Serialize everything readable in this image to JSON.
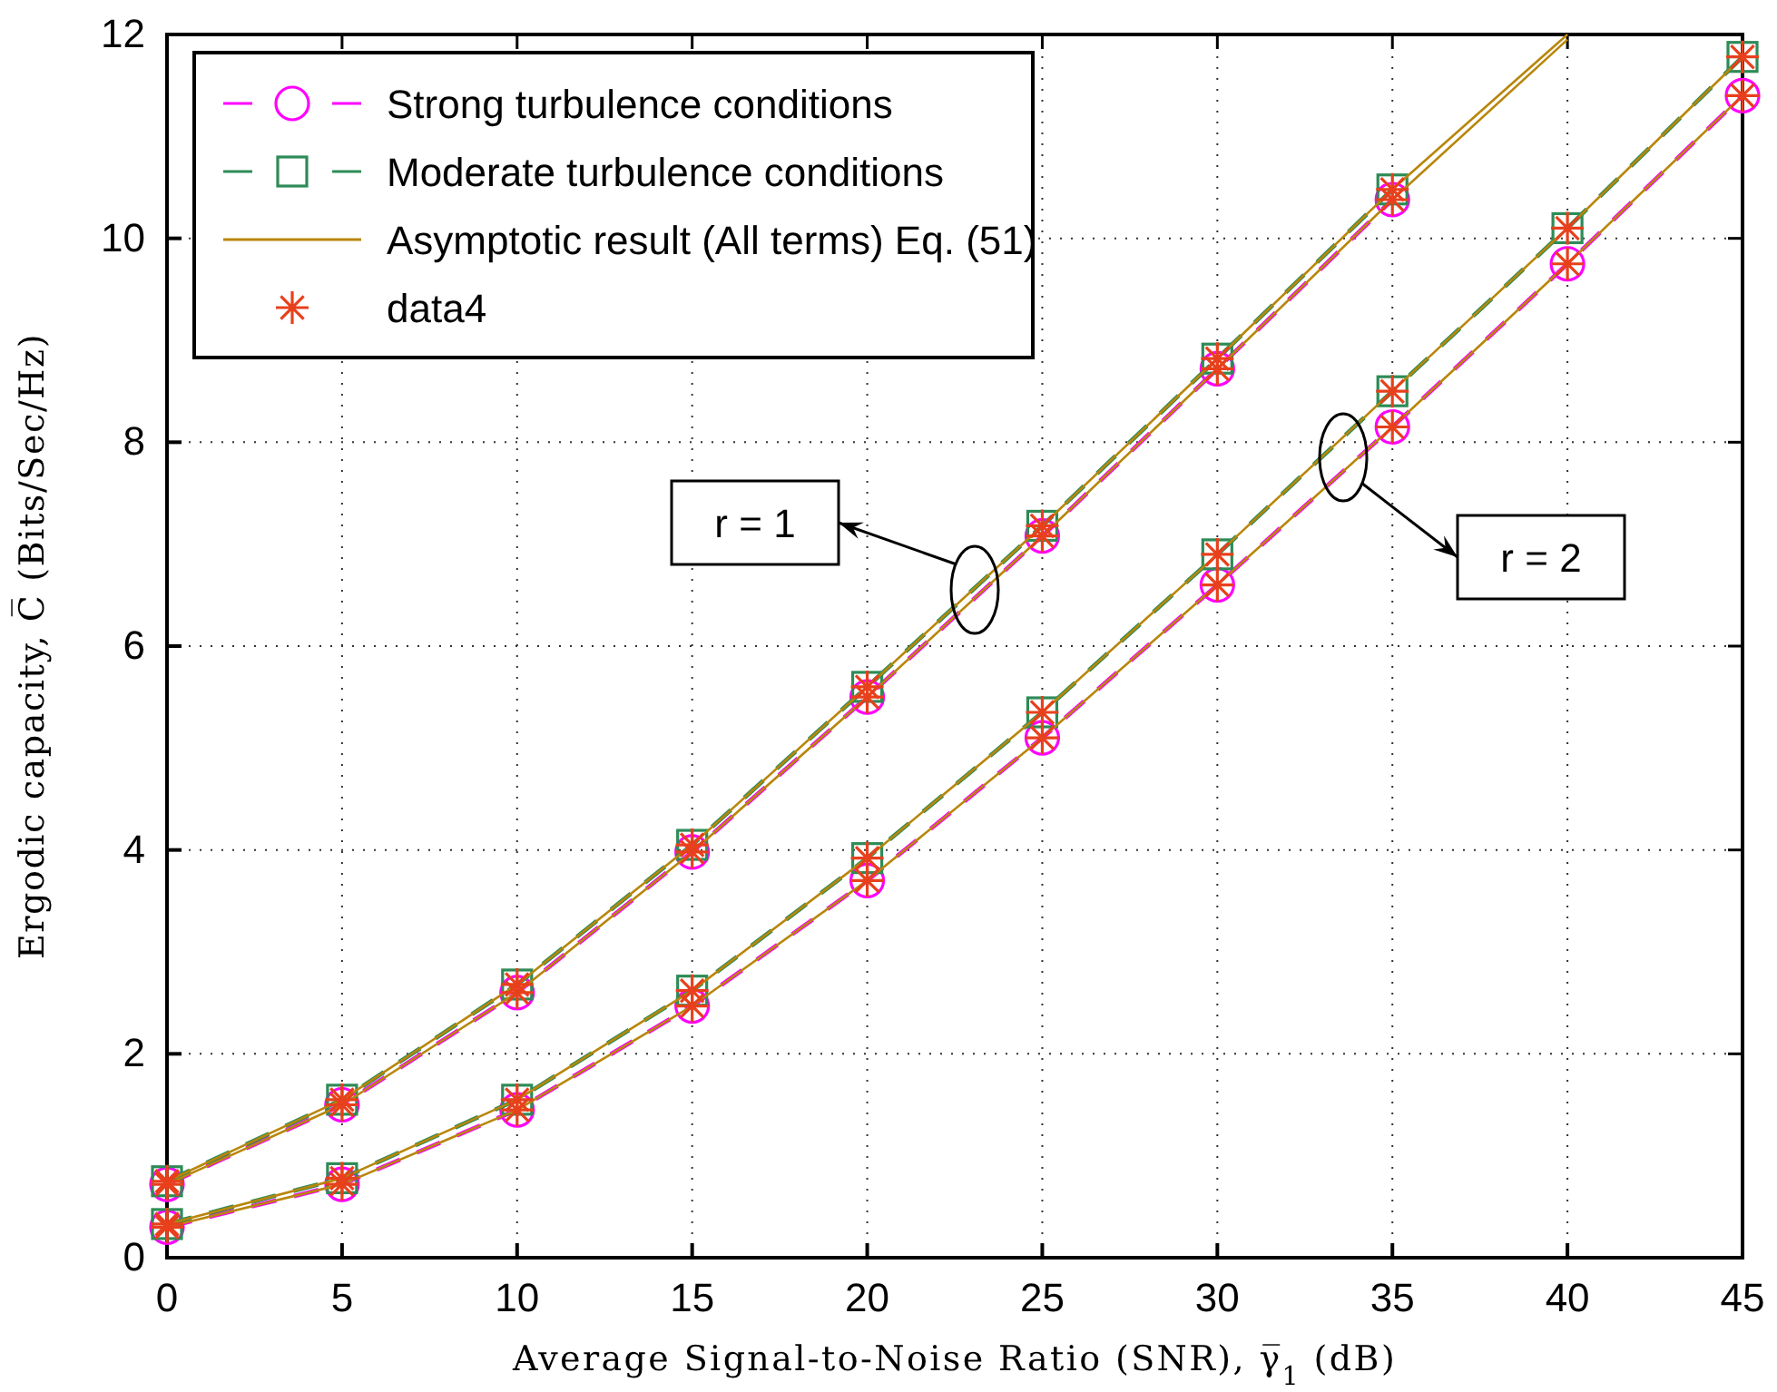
{
  "chart_data": {
    "type": "line",
    "xlabel": "Average Signal-to-Noise Ratio (SNR), γ̅$_{1}$ (dB)",
    "ylabel": "Ergodic capacity, C̅ (Bits/Sec/Hz)",
    "x": [
      0,
      5,
      10,
      15,
      20,
      25,
      30,
      35,
      40,
      45
    ],
    "xlim": [
      0,
      45
    ],
    "xticks": [
      0,
      5,
      10,
      15,
      20,
      25,
      30,
      35,
      40,
      45
    ],
    "ylim": [
      0,
      12
    ],
    "yticks": [
      0,
      2,
      4,
      6,
      8,
      10,
      12
    ],
    "grid": true,
    "legend": "top left",
    "series": [
      {
        "name": "Strong turbulence conditions",
        "color": "#ff00ff",
        "line_style": "dashed",
        "marker": "circle",
        "values": [
          0.72,
          1.5,
          2.6,
          3.98,
          5.5,
          7.08,
          8.72,
          10.38,
          null,
          null
        ]
      },
      {
        "color": "#ff00ff",
        "line_style": "dashed",
        "marker": "circle",
        "values": [
          0.3,
          0.72,
          1.45,
          2.47,
          3.7,
          5.1,
          6.6,
          8.15,
          9.75,
          11.4
        ]
      },
      {
        "name": "Moderate turbulence conditions",
        "color": "#2e8b57",
        "line_style": "dashed",
        "marker": "square",
        "values": [
          0.75,
          1.55,
          2.68,
          4.05,
          5.6,
          7.18,
          8.82,
          10.48,
          null,
          null
        ]
      },
      {
        "color": "#2e8b57",
        "line_style": "dashed",
        "marker": "square",
        "values": [
          0.33,
          0.78,
          1.55,
          2.62,
          3.92,
          5.35,
          6.9,
          8.5,
          10.1,
          11.78
        ]
      },
      {
        "name": "Asymptotic result (All terms) Eq. (51)",
        "color": "#b8860b",
        "line_style": "solid",
        "marker": "none",
        "values": [
          0.72,
          1.5,
          2.6,
          3.98,
          5.5,
          7.08,
          8.72,
          10.38,
          11.95,
          null
        ]
      },
      {
        "color": "#b8860b",
        "line_style": "solid",
        "marker": "none",
        "values": [
          0.75,
          1.55,
          2.68,
          4.05,
          5.6,
          7.18,
          8.82,
          10.48,
          12.0,
          null
        ]
      },
      {
        "color": "#b8860b",
        "line_style": "solid",
        "marker": "none",
        "values": [
          0.3,
          0.72,
          1.45,
          2.47,
          3.7,
          5.1,
          6.6,
          8.15,
          9.75,
          11.4
        ]
      },
      {
        "color": "#b8860b",
        "line_style": "solid",
        "marker": "none",
        "values": [
          0.33,
          0.78,
          1.55,
          2.62,
          3.92,
          5.35,
          6.9,
          8.5,
          10.1,
          11.78
        ]
      },
      {
        "name": "data4",
        "type": "scatter",
        "color": "#e8401c",
        "marker": "cross",
        "values": [
          0.72,
          1.5,
          2.6,
          3.98,
          5.5,
          7.08,
          8.72,
          10.38,
          null,
          null
        ]
      },
      {
        "type": "scatter",
        "color": "#e8401c",
        "marker": "cross",
        "values": [
          0.75,
          1.55,
          2.68,
          4.05,
          5.6,
          7.18,
          8.82,
          10.48,
          null,
          null
        ]
      },
      {
        "type": "scatter",
        "color": "#e8401c",
        "marker": "cross",
        "values": [
          0.3,
          0.72,
          1.45,
          2.47,
          3.7,
          5.1,
          6.6,
          8.15,
          9.75,
          11.4
        ]
      },
      {
        "type": "scatter",
        "color": "#e8401c",
        "marker": "cross",
        "values": [
          0.33,
          0.78,
          1.55,
          2.62,
          3.92,
          5.35,
          6.9,
          8.5,
          10.1,
          11.78
        ]
      }
    ],
    "annotations": [
      "r = 1",
      "r = 2"
    ]
  }
}
